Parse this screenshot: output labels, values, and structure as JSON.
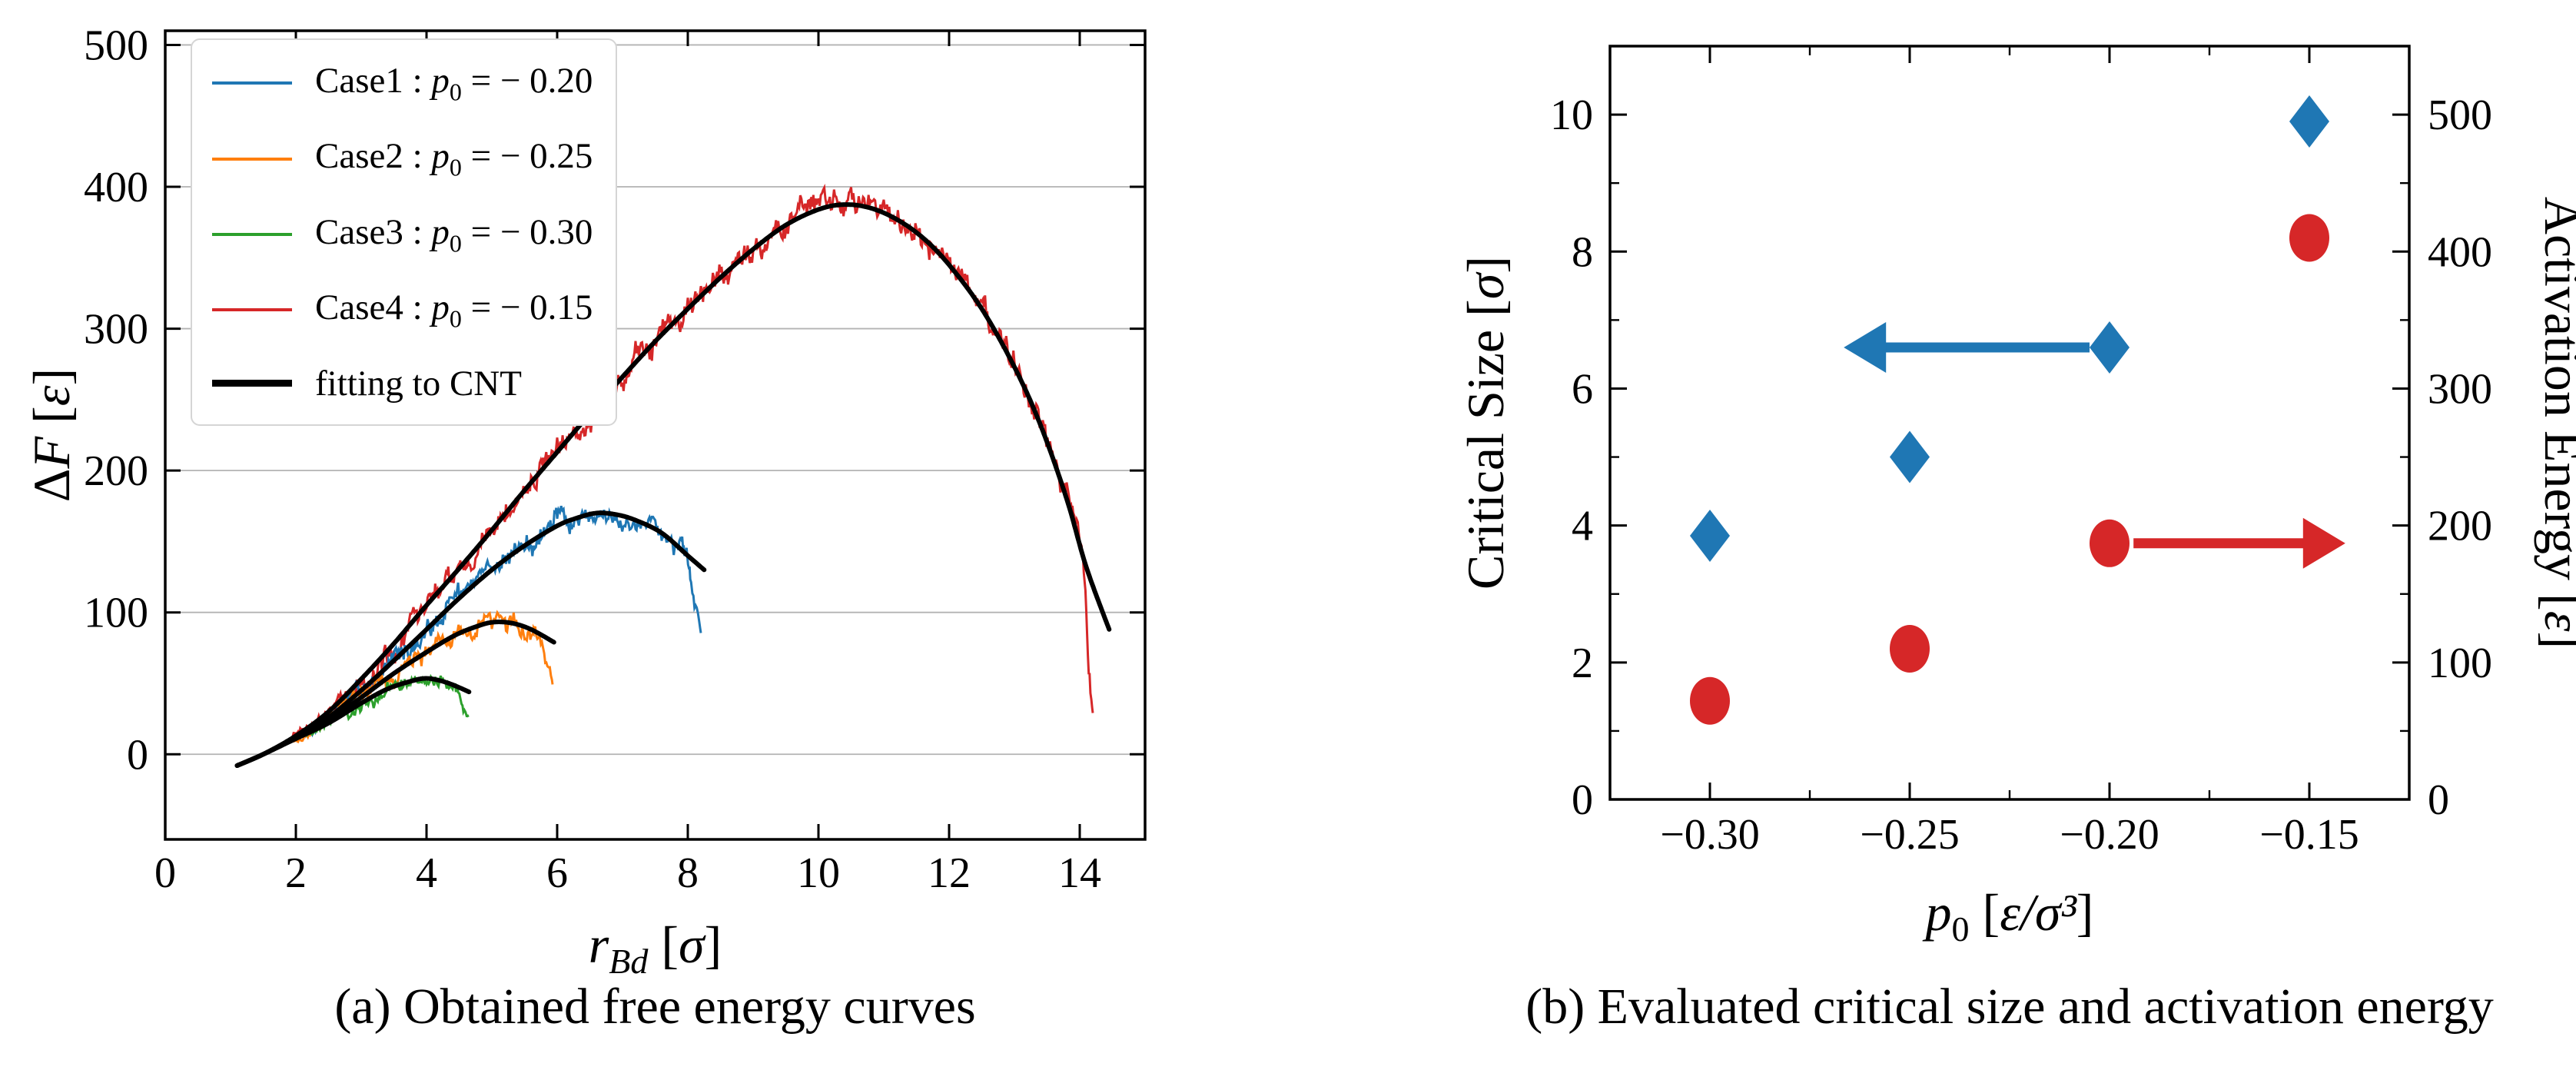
{
  "figure": {
    "background": "#ffffff",
    "text_color": "#000000"
  },
  "chart_data": [
    {
      "id": "free_energy",
      "type": "line",
      "caption": "(a) Obtained free energy curves",
      "xlabel": {
        "var": "r",
        "sub": "Bd",
        "unit_open": " [",
        "unit_sym": "σ",
        "unit_close": "]"
      },
      "ylabel": {
        "pre": "Δ",
        "var": "F",
        "unit_open": " [",
        "unit_sym": "ε",
        "unit_close": "]"
      },
      "xlim": [
        0,
        15
      ],
      "ylim": [
        -60,
        510
      ],
      "xticks": [
        0,
        2,
        4,
        6,
        8,
        10,
        12,
        14
      ],
      "yticks": [
        0,
        100,
        200,
        300,
        400,
        500
      ],
      "grid": "horizontal",
      "grid_color": "#b3b3b3",
      "frame_color": "#000000",
      "fit_color": "#000000",
      "legend": [
        {
          "name": "Case1",
          "var": "p",
          "sub": "0",
          "eq": "=",
          "value": "− 0.20",
          "color": "#1f77b4",
          "line": "thin"
        },
        {
          "name": "Case2",
          "var": "p",
          "sub": "0",
          "eq": "=",
          "value": "− 0.25",
          "color": "#ff7f0e",
          "line": "thin"
        },
        {
          "name": "Case3",
          "var": "p",
          "sub": "0",
          "eq": "=",
          "value": "− 0.30",
          "color": "#2ca02c",
          "line": "thin"
        },
        {
          "name": "Case4",
          "var": "p",
          "sub": "0",
          "eq": "=",
          "value": "− 0.15",
          "color": "#d62728",
          "line": "thin"
        },
        {
          "text": "fitting to CNT",
          "color": "#000000",
          "line": "thick"
        }
      ],
      "series": [
        {
          "name": "Case4",
          "p0": "−0.15",
          "color": "#d62728",
          "noise": 8,
          "seed": 40,
          "peak": {
            "x": 10,
            "y": 385
          },
          "barrier_end": {
            "x": 14.2,
            "y": 22
          },
          "fit_anchors": [
            [
              1.1,
              -8
            ],
            [
              1.5,
              0
            ],
            [
              2,
              13
            ],
            [
              2.5,
              30
            ],
            [
              3,
              53
            ],
            [
              3.5,
              78
            ],
            [
              4,
              105
            ],
            [
              4.5,
              131
            ],
            [
              5,
              158
            ],
            [
              5.5,
              186
            ],
            [
              6,
              213
            ],
            [
              6.5,
              240
            ],
            [
              7,
              266
            ],
            [
              7.5,
              291
            ],
            [
              8,
              314
            ],
            [
              8.5,
              336
            ],
            [
              9,
              356
            ],
            [
              9.5,
              373
            ],
            [
              10,
              384
            ],
            [
              10.4,
              387.5
            ],
            [
              10.8,
              385
            ],
            [
              11.2,
              377
            ],
            [
              11.6,
              364
            ],
            [
              12,
              345
            ],
            [
              12.5,
              314
            ],
            [
              13,
              273
            ],
            [
              13.4,
              232
            ],
            [
              13.8,
              180
            ],
            [
              14.1,
              132
            ],
            [
              14.45,
              88
            ]
          ],
          "sim_tail": [
            [
              13.9,
              165
            ],
            [
              14.0,
              150
            ],
            [
              14.05,
              128
            ],
            [
              14.1,
              92
            ],
            [
              14.15,
              50
            ],
            [
              14.2,
              22
            ]
          ]
        },
        {
          "name": "Case1",
          "p0": "−0.20",
          "color": "#1f77b4",
          "noise": 6.5,
          "seed": 10,
          "peak": {
            "x": 6.6,
            "y": 170
          },
          "barrier_end": {
            "x": 8.2,
            "y": 88
          },
          "fit_anchors": [
            [
              1.1,
              -8
            ],
            [
              1.5,
              0
            ],
            [
              2,
              12
            ],
            [
              2.5,
              26
            ],
            [
              3,
              45
            ],
            [
              3.5,
              66
            ],
            [
              4,
              88
            ],
            [
              4.5,
              110
            ],
            [
              5,
              130
            ],
            [
              5.5,
              147
            ],
            [
              6,
              161
            ],
            [
              6.3,
              166.5
            ],
            [
              6.6,
              170
            ],
            [
              6.9,
              169
            ],
            [
              7.2,
              165
            ],
            [
              7.6,
              156
            ],
            [
              8.0,
              140
            ],
            [
              8.25,
              130
            ]
          ],
          "sim_tail": [
            [
              7.95,
              142
            ],
            [
              8.05,
              128
            ],
            [
              8.12,
              108
            ],
            [
              8.2,
              88
            ]
          ]
        },
        {
          "name": "Case2",
          "p0": "−0.25",
          "color": "#ff7f0e",
          "noise": 5.5,
          "seed": 20,
          "peak": {
            "x": 5.0,
            "y": 93
          },
          "barrier_end": {
            "x": 5.93,
            "y": 55
          },
          "fit_anchors": [
            [
              1.1,
              -8
            ],
            [
              1.5,
              0
            ],
            [
              2,
              11.5
            ],
            [
              2.5,
              24
            ],
            [
              3,
              40
            ],
            [
              3.5,
              57
            ],
            [
              4,
              72
            ],
            [
              4.4,
              83
            ],
            [
              4.7,
              89
            ],
            [
              5,
              93
            ],
            [
              5.3,
              92.5
            ],
            [
              5.6,
              88
            ],
            [
              5.95,
              79
            ]
          ],
          "sim_tail": [
            [
              5.65,
              87
            ],
            [
              5.75,
              82
            ],
            [
              5.85,
              67
            ],
            [
              5.93,
              55
            ]
          ]
        },
        {
          "name": "Case3",
          "p0": "−0.30",
          "color": "#2ca02c",
          "noise": 4.5,
          "seed": 30,
          "peak": {
            "x": 3.9,
            "y": 53
          },
          "barrier_end": {
            "x": 4.64,
            "y": 26
          },
          "fit_anchors": [
            [
              1.1,
              -8
            ],
            [
              1.5,
              0
            ],
            [
              2,
              11
            ],
            [
              2.5,
              22
            ],
            [
              3,
              36
            ],
            [
              3.4,
              46
            ],
            [
              3.8,
              52
            ],
            [
              4,
              53.5
            ],
            [
              4.2,
              52
            ],
            [
              4.4,
              49
            ],
            [
              4.65,
              44
            ]
          ],
          "sim_tail": [
            [
              4.45,
              48
            ],
            [
              4.52,
              42
            ],
            [
              4.58,
              33
            ],
            [
              4.64,
              26
            ]
          ]
        }
      ]
    },
    {
      "id": "critical_activation",
      "type": "scatter",
      "caption": "(b) Evaluated critical size and activation energy",
      "xlabel": {
        "var": "p",
        "sub": "0",
        "unit_open": " [",
        "unit_sym": "ε/σ³",
        "unit_close": "]"
      },
      "ylabel_left": {
        "text": "Critical Size",
        "unit_open": " [",
        "unit_sym": "σ",
        "unit_close": "]"
      },
      "ylabel_right": {
        "text": "Activation Energy",
        "unit_open": " [",
        "unit_sym": "ε",
        "unit_close": "]"
      },
      "xlim": [
        -0.325,
        -0.125
      ],
      "ylim_left": [
        0,
        11
      ],
      "ylim_right": [
        0,
        550
      ],
      "xtick_values": [
        -0.3,
        -0.25,
        -0.2,
        -0.15
      ],
      "xtick_labels": [
        "−0.30",
        "−0.25",
        "−0.20",
        "−0.15"
      ],
      "ytick_left": [
        0,
        2,
        4,
        6,
        8,
        10
      ],
      "ytick_right": [
        0,
        100,
        200,
        300,
        400,
        500
      ],
      "frame_color": "#000000",
      "series": [
        {
          "name": "Critical Size",
          "marker": "diamond",
          "color": "#1f77b4",
          "axis": "left",
          "x": [
            -0.3,
            -0.25,
            -0.2,
            -0.15
          ],
          "y": [
            3.85,
            5.0,
            6.6,
            9.9
          ]
        },
        {
          "name": "Activation Energy",
          "marker": "circle",
          "color": "#d62728",
          "axis": "right",
          "x": [
            -0.3,
            -0.25,
            -0.2,
            -0.15
          ],
          "y": [
            72,
            110,
            187,
            410
          ]
        }
      ],
      "annotations": [
        {
          "name": "critical-size-arrow",
          "color": "#1f77b4",
          "axis": "left",
          "y": 6.6,
          "x_from": -0.205,
          "x_to": -0.2665,
          "direction": "left"
        },
        {
          "name": "activation-energy-arrow",
          "color": "#d62728",
          "axis": "right",
          "y": 187,
          "x_from": -0.194,
          "x_to": -0.141,
          "direction": "right"
        }
      ]
    }
  ]
}
